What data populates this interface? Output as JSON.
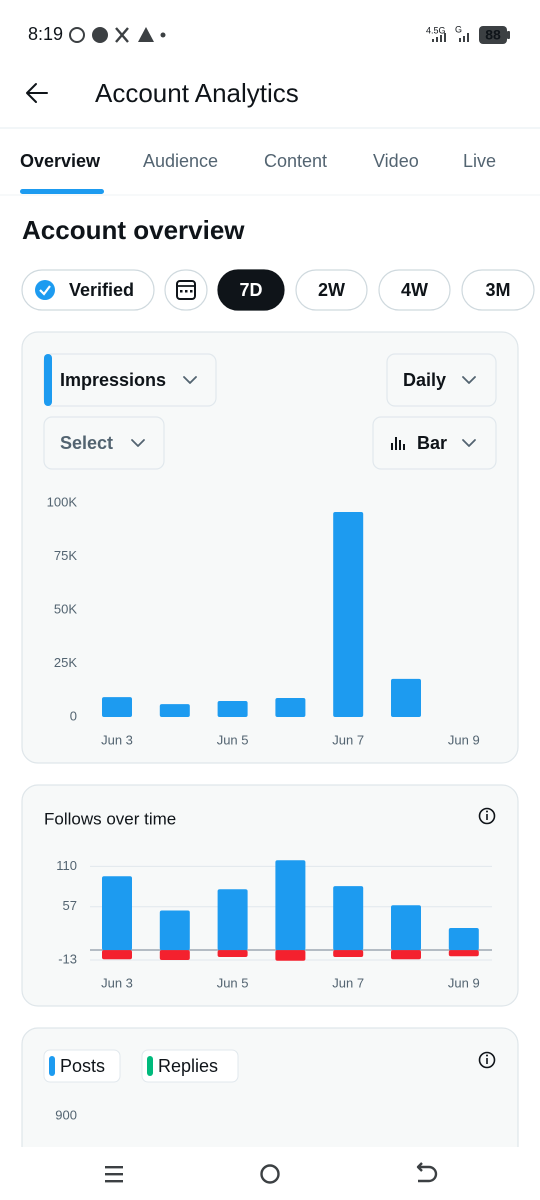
{
  "status_bar": {
    "time": "8:19",
    "network_1": "4.5G",
    "network_2": "G",
    "battery": "88"
  },
  "header": {
    "title": "Account Analytics"
  },
  "tabs": {
    "items": [
      "Overview",
      "Audience",
      "Content",
      "Video",
      "Live"
    ],
    "selected": 0
  },
  "section_title": "Account overview",
  "filters": {
    "verified": "Verified",
    "ranges": [
      "7D",
      "2W",
      "4W",
      "3M"
    ],
    "selected": 0
  },
  "impressions_card": {
    "metric": "Impressions",
    "interval": "Daily",
    "compare": "Select",
    "chart_style": "Bar"
  },
  "chart_data": [
    {
      "type": "bar",
      "categories": [
        "Jun 3",
        null,
        "Jun 5",
        null,
        "Jun 7",
        null,
        "Jun 9"
      ],
      "series": [
        {
          "color": "#1d9bf0",
          "values": [
            9300,
            6000,
            7500,
            8900,
            95800,
            17800,
            null
          ]
        }
      ],
      "ylim": [
        0,
        100000
      ],
      "yticks": [
        0,
        {
          "value": 25000,
          "label": "25K"
        },
        {
          "value": 50000,
          "label": "50K"
        },
        {
          "value": 75000,
          "label": "75K"
        },
        {
          "value": 100000,
          "label": "100K"
        }
      ],
      "grid": false
    },
    {
      "type": "bar",
      "title": "Follows over time",
      "categories": [
        "Jun 3",
        null,
        "Jun 5",
        null,
        "Jun 7",
        null,
        "Jun 9"
      ],
      "series": [
        {
          "color": "#1d9bf0",
          "values": [
            97,
            52,
            80,
            118,
            84,
            59,
            29
          ]
        },
        {
          "color": "#f4212e",
          "values": [
            -12,
            -13,
            -9,
            -14,
            -9,
            -12,
            -8
          ]
        }
      ],
      "ylim": [
        -13,
        121
      ],
      "yticks": [
        -13,
        57,
        110
      ],
      "grid": true
    },
    {
      "type": "bar",
      "series": [
        {
          "name": "Posts",
          "color": "#1d9bf0"
        },
        {
          "name": "Replies",
          "color": "#00ba7c"
        }
      ],
      "yticks": [
        900
      ]
    }
  ]
}
